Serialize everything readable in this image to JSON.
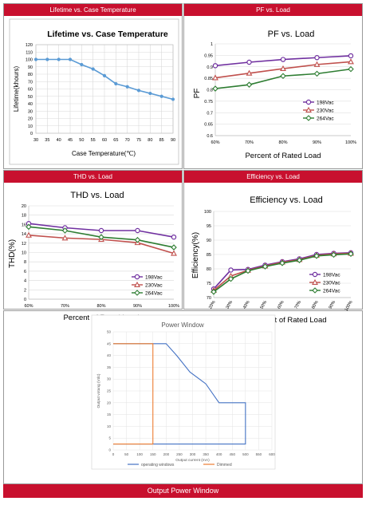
{
  "panels": {
    "lifetime_header": "Lifetime vs. Case Temperature",
    "pf_header": "PF vs. Load",
    "thd_header": "THD vs. Load",
    "eff_header": "Efficiency vs. Load",
    "footer": "Output Power Window"
  },
  "colors": {
    "header_red": "#c8102e",
    "lifetime_blue": "#5b9bd5",
    "v198": "#7030a0",
    "v230": "#c0504d",
    "v264": "#2e7d32",
    "operating": "#4472c4",
    "dimmed": "#ed7d31"
  },
  "chart_data": [
    {
      "id": "lifetime",
      "type": "line",
      "title": "Lifetime vs. Case Temperature",
      "xlabel": "Case Temperature(℃)",
      "ylabel": "Lifetime(khours)",
      "x": [
        30,
        35,
        40,
        45,
        50,
        55,
        60,
        65,
        70,
        75,
        80,
        85,
        90
      ],
      "xticks": [
        "30",
        "35",
        "40",
        "45",
        "50",
        "55",
        "60",
        "65",
        "70",
        "75",
        "80",
        "85",
        "90"
      ],
      "yticks": [
        "0",
        "10",
        "20",
        "30",
        "40",
        "50",
        "60",
        "70",
        "80",
        "90",
        "100",
        "110",
        "120"
      ],
      "xlim": [
        30,
        90
      ],
      "ylim": [
        0,
        120
      ],
      "grid": true,
      "series": [
        {
          "values": [
            100,
            100,
            100,
            100,
            93,
            87,
            78,
            67,
            63,
            58,
            54,
            50,
            46
          ]
        }
      ]
    },
    {
      "id": "pf",
      "type": "line",
      "title": "PF vs. Load",
      "xlabel": "Percent of Rated Load",
      "ylabel": "PF",
      "categories": [
        "60%",
        "70%",
        "80%",
        "90%",
        "100%"
      ],
      "yticks": [
        "0.6",
        "0.65",
        "0.7",
        "0.75",
        "0.8",
        "0.85",
        "0.9",
        "0.95",
        "1"
      ],
      "ylim": [
        0.6,
        1.0
      ],
      "legend": "bottom-right",
      "series": [
        {
          "name": "198Vac",
          "values": [
            0.905,
            0.92,
            0.932,
            0.94,
            0.948
          ]
        },
        {
          "name": "230Vac",
          "values": [
            0.852,
            0.872,
            0.892,
            0.91,
            0.922
          ]
        },
        {
          "name": "264Vac",
          "values": [
            0.805,
            0.822,
            0.86,
            0.87,
            0.89
          ]
        }
      ]
    },
    {
      "id": "thd",
      "type": "line",
      "title": "THD vs. Load",
      "xlabel": "Percent of Rated Load",
      "ylabel": "THD(%)",
      "categories": [
        "60%",
        "70%",
        "80%",
        "90%",
        "100%"
      ],
      "yticks": [
        "0",
        "2",
        "4",
        "6",
        "8",
        "10",
        "12",
        "14",
        "16",
        "18",
        "20"
      ],
      "ylim": [
        0,
        20
      ],
      "legend": "bottom-right",
      "series": [
        {
          "name": "198Vac",
          "values": [
            16.2,
            15.3,
            14.7,
            14.7,
            13.3
          ]
        },
        {
          "name": "230Vac",
          "values": [
            13.7,
            13.1,
            12.8,
            12.1,
            9.8
          ]
        },
        {
          "name": "264Vac",
          "values": [
            15.5,
            14.7,
            13.3,
            12.7,
            11.1
          ]
        }
      ]
    },
    {
      "id": "efficiency",
      "type": "line",
      "title": "Efficiency vs. Load",
      "xlabel": "Percent of Rated Load",
      "ylabel": "Efficiency(%)",
      "categories": [
        "20%",
        "30%",
        "40%",
        "50%",
        "60%",
        "70%",
        "80%",
        "90%",
        "100%"
      ],
      "yticks": [
        "70",
        "75",
        "80",
        "85",
        "90",
        "95",
        "100"
      ],
      "ylim": [
        70,
        100
      ],
      "legend": "bottom-right",
      "series": [
        {
          "name": "198Vac",
          "values": [
            73,
            79.6,
            79.8,
            81.3,
            82.5,
            83.5,
            85,
            85.4,
            85.6
          ]
        },
        {
          "name": "230Vac",
          "values": [
            72.5,
            77.5,
            79.5,
            81,
            82.3,
            83.2,
            84.7,
            85.2,
            85.4
          ]
        },
        {
          "name": "264Vac",
          "values": [
            72,
            76.5,
            79.3,
            80.8,
            82,
            83,
            84.5,
            84.9,
            85.2
          ]
        }
      ]
    },
    {
      "id": "power_window",
      "type": "line",
      "title": "Power Window",
      "xlabel": "Output current (mA)",
      "ylabel": "Output votang (Vdc)",
      "xticks": [
        "0",
        "50",
        "100",
        "150",
        "200",
        "250",
        "300",
        "350",
        "400",
        "450",
        "500",
        "550",
        "600"
      ],
      "yticks": [
        "0",
        "5",
        "10",
        "15",
        "20",
        "25",
        "30",
        "35",
        "40",
        "45",
        "50"
      ],
      "xlim": [
        0,
        600
      ],
      "ylim": [
        0,
        50
      ],
      "grid": true,
      "legend": "bottom",
      "series": [
        {
          "name": "operating windows",
          "x": [
            0,
            200,
            240,
            290,
            350,
            400,
            500,
            500,
            0
          ],
          "values": [
            45,
            45,
            40,
            33,
            28,
            20,
            20,
            2.5,
            2.5
          ]
        },
        {
          "name": "Dimmed",
          "x": [
            0,
            150,
            150,
            0
          ],
          "values": [
            45,
            45,
            2.5,
            2.5
          ]
        }
      ]
    }
  ]
}
